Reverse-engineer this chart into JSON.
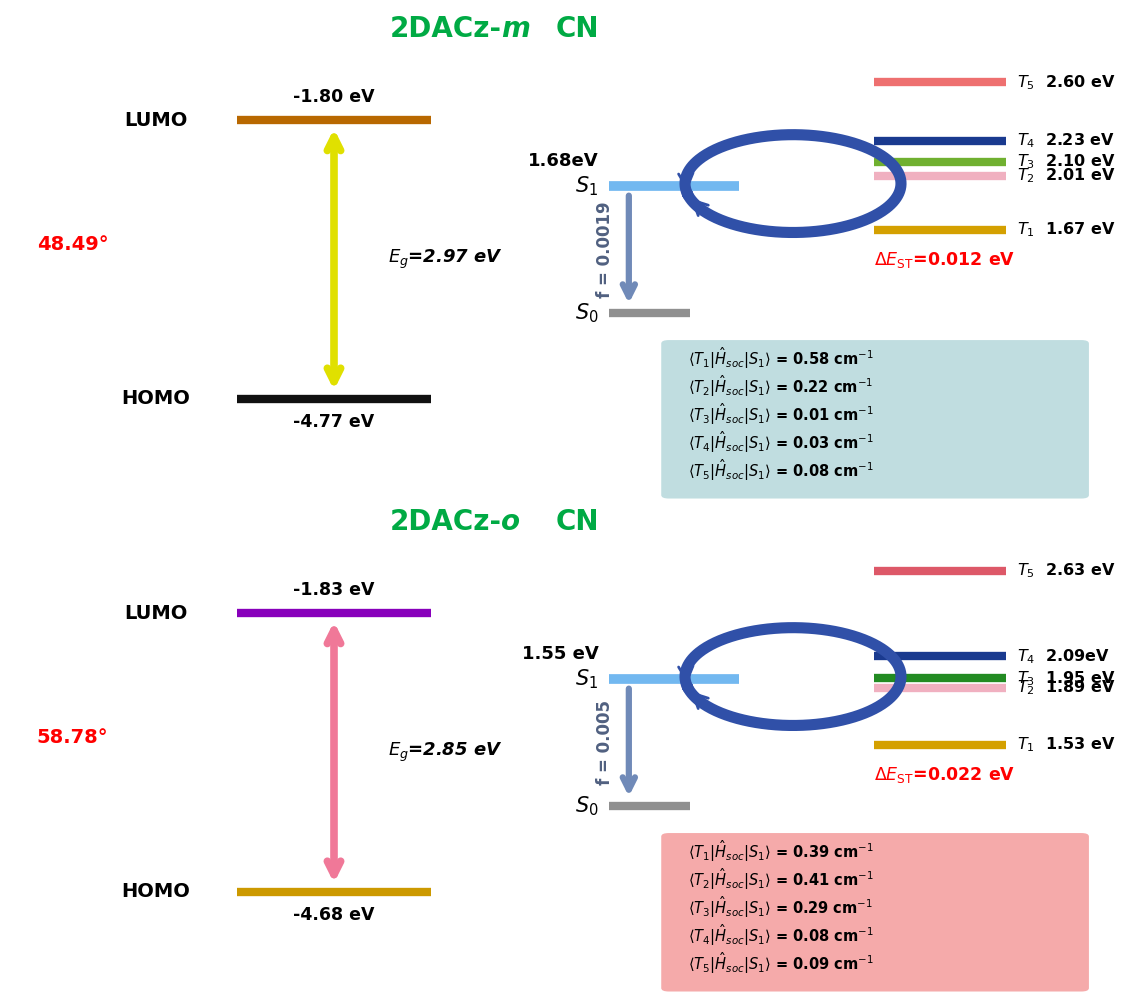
{
  "top_bg": "#aeedf2",
  "bot_bg": "#deedc8",
  "title_color": "#00aa44",
  "panel1": {
    "lumo_energy": "-1.80 eV",
    "homo_energy": "-4.77 eV",
    "lumo_bar_color": "#b86800",
    "homo_bar_color": "#111111",
    "arrow_color": "#e0e000",
    "gap_label": "2.97 eV",
    "angle": "48.49",
    "S1_energy": "1.68eV",
    "S1_color": "#72b8f0",
    "S0_color": "#909090",
    "f_value": "f = 0.0019",
    "circ_color": "#3050a8",
    "delta_EST": "0.012 eV",
    "soc_bg": "#c0dde0",
    "triplets": [
      {
        "n": 5,
        "energy": 2.6,
        "label": "2.60 eV",
        "color": "#ee7070"
      },
      {
        "n": 4,
        "energy": 2.23,
        "label": "2.23 eV",
        "color": "#1a3a8f"
      },
      {
        "n": 3,
        "energy": 2.1,
        "label": "2.10 eV",
        "color": "#70b030"
      },
      {
        "n": 2,
        "energy": 2.01,
        "label": "2.01 eV",
        "color": "#f0b0c0"
      },
      {
        "n": 1,
        "energy": 1.67,
        "label": "1.67 eV",
        "color": "#d4a000"
      }
    ],
    "soc_vals": [
      "0.58",
      "0.22",
      "0.01",
      "0.03",
      "0.08"
    ]
  },
  "panel2": {
    "lumo_energy": "-1.83 eV",
    "homo_energy": "-4.68 eV",
    "lumo_bar_color": "#8800bb",
    "homo_bar_color": "#cc9900",
    "arrow_color": "#f07898",
    "gap_label": "2.85 eV",
    "angle": "58.78",
    "S1_energy": "1.55 eV",
    "S1_color": "#72b8f0",
    "S0_color": "#909090",
    "f_value": "f = 0.005",
    "circ_color": "#3050a8",
    "delta_EST": "0.022 eV",
    "soc_bg": "#f5aaaa",
    "triplets": [
      {
        "n": 5,
        "energy": 2.63,
        "label": "2.63 eV",
        "color": "#dd5868"
      },
      {
        "n": 4,
        "energy": 2.09,
        "label": "2.09eV",
        "color": "#1a3a8f"
      },
      {
        "n": 3,
        "energy": 1.95,
        "label": "1.95 eV",
        "color": "#228b22"
      },
      {
        "n": 2,
        "energy": 1.89,
        "label": "1.89 eV",
        "color": "#f0b0c0"
      },
      {
        "n": 1,
        "energy": 1.53,
        "label": "1.53 eV",
        "color": "#d4a000"
      }
    ],
    "soc_vals": [
      "0.39",
      "0.41",
      "0.29",
      "0.08",
      "0.09"
    ]
  }
}
